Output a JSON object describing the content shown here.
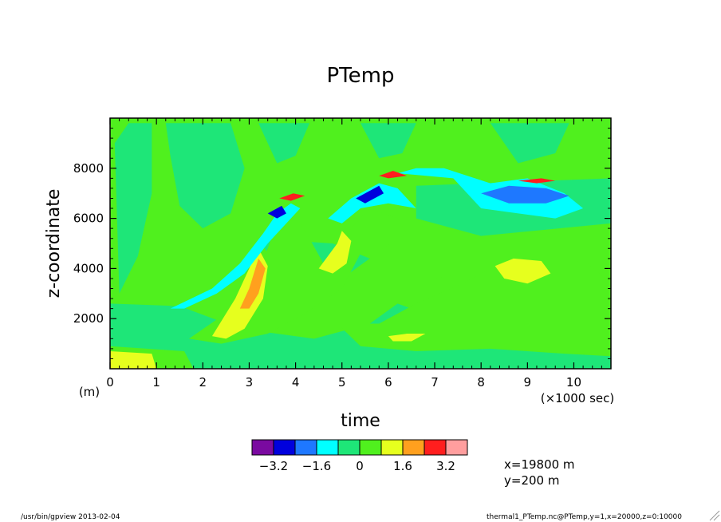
{
  "chart_data": {
    "type": "heatmap",
    "title": "PTemp",
    "xlabel": "time",
    "ylabel": "z-coordinate",
    "x_unit": "(×1000 sec)",
    "y_unit": "(m)",
    "xlim": [
      0,
      10.8
    ],
    "ylim": [
      0,
      10000
    ],
    "x_ticks": [
      "0",
      "1",
      "2",
      "3",
      "4",
      "5",
      "6",
      "7",
      "8",
      "9",
      "10"
    ],
    "y_ticks": [
      "2000",
      "4000",
      "6000",
      "8000"
    ],
    "colorbar": {
      "colors": [
        "#7a0aa0",
        "#0000dd",
        "#1e78ff",
        "#00ffff",
        "#1ee678",
        "#50f01e",
        "#e6ff1e",
        "#ffa01e",
        "#ff1e1e",
        "#ff9e9e"
      ],
      "boundaries": [
        -4,
        -3.2,
        -2.4,
        -1.6,
        -0.8,
        0,
        0.8,
        1.6,
        2.4,
        3.2,
        4
      ],
      "labels": [
        "−3.2",
        "−1.6",
        "0",
        "1.6",
        "3.2"
      ]
    },
    "regions": [
      {
        "level": "-0.8..0",
        "points": [
          [
            0.4,
            9.8
          ],
          [
            0.9,
            9.8
          ],
          [
            0.9,
            7.0
          ],
          [
            0.6,
            4.5
          ],
          [
            0.2,
            3.0
          ],
          [
            0.1,
            9.0
          ]
        ]
      },
      {
        "level": "-0.8..0",
        "points": [
          [
            1.2,
            9.8
          ],
          [
            2.6,
            9.8
          ],
          [
            2.9,
            8.0
          ],
          [
            2.6,
            6.2
          ],
          [
            2.0,
            5.6
          ],
          [
            1.5,
            6.5
          ],
          [
            1.3,
            8.5
          ]
        ]
      },
      {
        "level": "-0.8..0",
        "points": [
          [
            3.2,
            9.8
          ],
          [
            4.3,
            9.8
          ],
          [
            4.0,
            8.5
          ],
          [
            3.6,
            8.2
          ]
        ]
      },
      {
        "level": "-0.8..0",
        "points": [
          [
            5.4,
            9.8
          ],
          [
            6.6,
            9.8
          ],
          [
            6.3,
            8.6
          ],
          [
            5.8,
            8.4
          ]
        ]
      },
      {
        "level": "-0.8..0",
        "points": [
          [
            8.2,
            9.8
          ],
          [
            9.9,
            9.8
          ],
          [
            9.6,
            8.6
          ],
          [
            8.8,
            8.2
          ]
        ]
      },
      {
        "level": "-0.8..0",
        "points": [
          [
            3.2,
            5.2
          ],
          [
            4.8,
            5.0
          ],
          [
            5.6,
            4.4
          ],
          [
            5.0,
            3.6
          ],
          [
            3.8,
            3.4
          ]
        ]
      },
      {
        "level": "-0.8..0",
        "points": [
          [
            0.0,
            2.6
          ],
          [
            1.5,
            2.5
          ],
          [
            2.8,
            1.6
          ],
          [
            4.4,
            1.2
          ],
          [
            5.6,
            1.8
          ],
          [
            6.2,
            2.6
          ],
          [
            7.4,
            1.8
          ],
          [
            9.6,
            1.4
          ],
          [
            10.8,
            1.6
          ],
          [
            10.8,
            0.0
          ],
          [
            0.0,
            0.0
          ]
        ]
      },
      {
        "level": "-0.8..0",
        "points": [
          [
            6.6,
            7.3
          ],
          [
            10.8,
            7.6
          ],
          [
            10.8,
            5.8
          ],
          [
            8.0,
            5.3
          ],
          [
            6.6,
            6.0
          ]
        ]
      },
      {
        "level": "0..0.8",
        "points": [
          [
            0.0,
            0.9
          ],
          [
            1.6,
            0.7
          ],
          [
            1.8,
            0.0
          ],
          [
            0.0,
            0.0
          ]
        ]
      },
      {
        "level": "0..0.8",
        "points": [
          [
            1.7,
            1.2
          ],
          [
            2.8,
            2.6
          ],
          [
            3.4,
            4.8
          ],
          [
            3.6,
            5.9
          ],
          [
            4.0,
            6.1
          ],
          [
            4.3,
            5.2
          ],
          [
            4.6,
            4.2
          ],
          [
            5.2,
            5.6
          ],
          [
            5.6,
            6.4
          ],
          [
            6.2,
            6.0
          ],
          [
            6.4,
            5.4
          ],
          [
            5.8,
            4.7
          ],
          [
            5.4,
            4.6
          ],
          [
            5.0,
            3.2
          ],
          [
            4.2,
            2.2
          ],
          [
            3.4,
            1.4
          ],
          [
            2.4,
            1.0
          ]
        ]
      },
      {
        "level": "0..0.8",
        "points": [
          [
            4.9,
            1.8
          ],
          [
            5.8,
            1.8
          ],
          [
            6.6,
            2.6
          ],
          [
            7.6,
            3.4
          ],
          [
            8.2,
            4.0
          ],
          [
            9.0,
            4.2
          ],
          [
            9.8,
            4.4
          ],
          [
            10.3,
            4.2
          ],
          [
            10.8,
            3.4
          ],
          [
            10.8,
            0.5
          ],
          [
            9.8,
            0.6
          ],
          [
            8.2,
            0.8
          ],
          [
            6.6,
            0.7
          ],
          [
            5.4,
            0.9
          ]
        ]
      },
      {
        "level": "0..0.8",
        "points": [
          [
            7.0,
            3.6
          ],
          [
            7.6,
            4.4
          ],
          [
            8.0,
            4.5
          ],
          [
            7.6,
            3.8
          ]
        ]
      },
      {
        "level": "0.8..1.6",
        "points": [
          [
            2.2,
            1.3
          ],
          [
            2.7,
            2.8
          ],
          [
            3.1,
            4.4
          ],
          [
            3.2,
            4.8
          ],
          [
            3.4,
            4.1
          ],
          [
            3.3,
            2.8
          ],
          [
            2.9,
            1.6
          ],
          [
            2.5,
            1.2
          ]
        ]
      },
      {
        "level": "0.8..1.6",
        "points": [
          [
            4.5,
            4.0
          ],
          [
            4.9,
            5.0
          ],
          [
            5.0,
            5.5
          ],
          [
            5.2,
            5.1
          ],
          [
            5.1,
            4.2
          ],
          [
            4.8,
            3.8
          ]
        ]
      },
      {
        "level": "0.8..1.6",
        "points": [
          [
            8.3,
            4.1
          ],
          [
            8.7,
            4.4
          ],
          [
            9.3,
            4.3
          ],
          [
            9.5,
            3.8
          ],
          [
            9.0,
            3.4
          ],
          [
            8.5,
            3.6
          ]
        ]
      },
      {
        "level": "0.8..1.6",
        "points": [
          [
            6.0,
            1.3
          ],
          [
            6.4,
            1.4
          ],
          [
            6.8,
            1.4
          ],
          [
            6.5,
            1.1
          ],
          [
            6.1,
            1.1
          ]
        ]
      },
      {
        "level": "0.8..1.6",
        "points": [
          [
            0.0,
            0.7
          ],
          [
            0.9,
            0.6
          ],
          [
            1.0,
            0.0
          ],
          [
            0.0,
            0.0
          ]
        ]
      },
      {
        "level": "1.6..2.4",
        "points": [
          [
            2.8,
            2.4
          ],
          [
            3.0,
            3.2
          ],
          [
            3.2,
            4.4
          ],
          [
            3.35,
            4.0
          ],
          [
            3.2,
            3.0
          ],
          [
            3.0,
            2.4
          ]
        ]
      },
      {
        "level": "-1.6..-0.8",
        "points": [
          [
            1.3,
            2.4
          ],
          [
            2.2,
            3.2
          ],
          [
            2.8,
            4.2
          ],
          [
            3.3,
            5.4
          ],
          [
            3.6,
            6.2
          ],
          [
            3.9,
            6.6
          ],
          [
            4.1,
            6.4
          ],
          [
            3.8,
            5.8
          ],
          [
            3.4,
            5.0
          ],
          [
            2.9,
            3.8
          ],
          [
            2.3,
            3.0
          ],
          [
            1.6,
            2.4
          ]
        ]
      },
      {
        "level": "-1.6..-0.8",
        "points": [
          [
            4.7,
            6.0
          ],
          [
            5.2,
            6.8
          ],
          [
            5.8,
            7.4
          ],
          [
            6.2,
            7.2
          ],
          [
            6.6,
            6.4
          ],
          [
            6.0,
            6.6
          ],
          [
            5.4,
            6.4
          ],
          [
            5.0,
            5.8
          ]
        ]
      },
      {
        "level": "-1.6..-0.8",
        "points": [
          [
            6.2,
            7.8
          ],
          [
            7.4,
            7.6
          ],
          [
            8.0,
            6.4
          ],
          [
            9.6,
            6.0
          ],
          [
            10.2,
            6.4
          ],
          [
            9.8,
            7.0
          ],
          [
            9.0,
            7.6
          ],
          [
            8.2,
            7.4
          ],
          [
            7.2,
            8.0
          ],
          [
            6.6,
            8.0
          ]
        ]
      },
      {
        "level": "-2.4..-1.6",
        "points": [
          [
            8.0,
            7.0
          ],
          [
            8.6,
            7.3
          ],
          [
            9.4,
            7.2
          ],
          [
            9.9,
            6.9
          ],
          [
            9.4,
            6.6
          ],
          [
            8.6,
            6.6
          ]
        ]
      },
      {
        "level": "-3.2..-2.4",
        "points": [
          [
            3.4,
            6.2
          ],
          [
            3.7,
            6.5
          ],
          [
            3.8,
            6.2
          ],
          [
            3.6,
            6.0
          ]
        ]
      },
      {
        "level": "-3.2..-2.4",
        "points": [
          [
            5.3,
            6.8
          ],
          [
            5.8,
            7.3
          ],
          [
            5.9,
            7.0
          ],
          [
            5.5,
            6.6
          ]
        ]
      },
      {
        "level": "2.4..3.2",
        "points": [
          [
            3.65,
            6.8
          ],
          [
            3.95,
            7.0
          ],
          [
            4.2,
            6.9
          ],
          [
            3.9,
            6.7
          ]
        ]
      },
      {
        "level": "2.4..3.2",
        "points": [
          [
            5.8,
            7.7
          ],
          [
            6.1,
            7.9
          ],
          [
            6.4,
            7.7
          ],
          [
            6.0,
            7.6
          ]
        ]
      },
      {
        "level": "2.4..3.2",
        "points": [
          [
            8.8,
            7.5
          ],
          [
            9.3,
            7.6
          ],
          [
            9.6,
            7.5
          ],
          [
            9.2,
            7.4
          ]
        ]
      }
    ]
  },
  "labels": {
    "colorbar_extra": [
      "x=19800 m",
      "y=200 m"
    ],
    "footer_left": "/usr/bin/gpview  2013-02-04",
    "footer_right": "thermal1_PTemp.nc@PTemp,y=1,x=20000,z=0:10000"
  }
}
